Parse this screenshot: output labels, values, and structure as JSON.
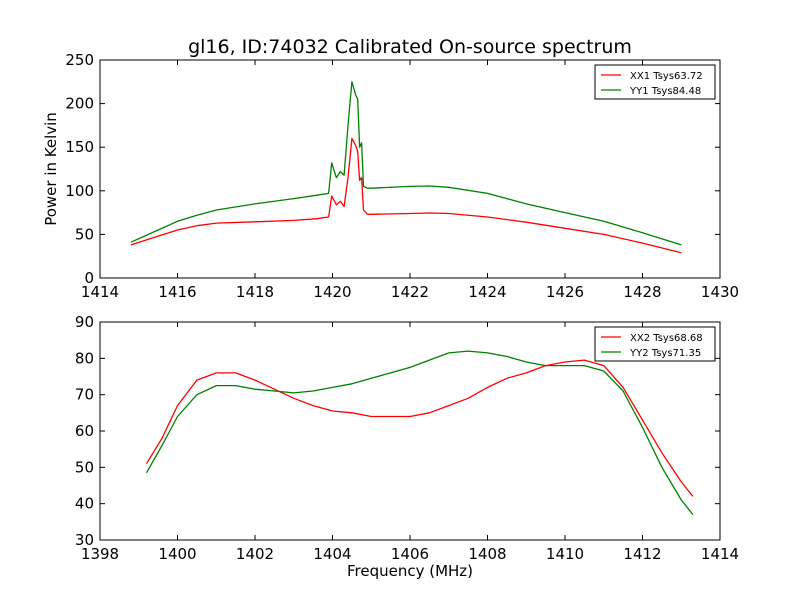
{
  "title": "gl16, ID:74032 Calibrated On-source spectrum",
  "xlabel": "Frequency (MHz)",
  "ylabel": "Power in Kelvin",
  "colors": {
    "xx": "#ff0000",
    "yy": "#008000",
    "axes": "#000000",
    "background": "#ffffff"
  },
  "chart_data": [
    {
      "type": "line",
      "xlim": [
        1414,
        1430
      ],
      "ylim": [
        0,
        250
      ],
      "xticks": [
        1414,
        1416,
        1418,
        1420,
        1422,
        1424,
        1426,
        1428,
        1430
      ],
      "yticks": [
        0,
        50,
        100,
        150,
        200,
        250
      ],
      "legend_position": "top-right",
      "grid": false,
      "series": [
        {
          "name": "XX1 Tsys63.72",
          "color": "#ff0000",
          "x": [
            1414.8,
            1415.5,
            1416.0,
            1416.5,
            1417.0,
            1418.0,
            1419.0,
            1419.6,
            1419.9,
            1419.98,
            1420.1,
            1420.2,
            1420.3,
            1420.4,
            1420.5,
            1420.6,
            1420.65,
            1420.7,
            1420.75,
            1420.8,
            1420.9,
            1421.0,
            1422.0,
            1422.5,
            1423.0,
            1424.0,
            1425.0,
            1426.0,
            1427.0,
            1428.0,
            1429.0
          ],
          "y": [
            38,
            48,
            55,
            60,
            63,
            64.5,
            66,
            68,
            70,
            94,
            84,
            88,
            82,
            115,
            160,
            152,
            145,
            112,
            115,
            78,
            73,
            73,
            74,
            74.5,
            74,
            70,
            64,
            57,
            50,
            40,
            29
          ]
        },
        {
          "name": "YY1 Tsys84.48",
          "color": "#008000",
          "x": [
            1414.8,
            1415.5,
            1416.0,
            1416.5,
            1417.0,
            1418.0,
            1419.0,
            1419.6,
            1419.9,
            1419.98,
            1420.1,
            1420.2,
            1420.3,
            1420.4,
            1420.5,
            1420.6,
            1420.65,
            1420.7,
            1420.75,
            1420.8,
            1420.9,
            1421.0,
            1422.0,
            1422.5,
            1423.0,
            1424.0,
            1425.0,
            1426.0,
            1427.0,
            1428.0,
            1429.0
          ],
          "y": [
            41,
            55,
            65,
            72,
            78,
            85,
            91,
            95,
            97,
            132,
            115,
            122,
            118,
            175,
            225,
            210,
            205,
            150,
            155,
            105,
            103,
            103,
            105,
            105.5,
            104,
            97,
            85,
            75,
            65,
            52,
            38
          ]
        }
      ]
    },
    {
      "type": "line",
      "xlim": [
        1398,
        1414
      ],
      "ylim": [
        30,
        90
      ],
      "xticks": [
        1398,
        1400,
        1402,
        1404,
        1406,
        1408,
        1410,
        1412,
        1414
      ],
      "yticks": [
        30,
        40,
        50,
        60,
        70,
        80,
        90
      ],
      "legend_position": "top-right",
      "grid": false,
      "series": [
        {
          "name": "XX2 Tsys68.68",
          "color": "#ff0000",
          "x": [
            1399.2,
            1399.6,
            1400.0,
            1400.5,
            1401.0,
            1401.5,
            1402.0,
            1402.5,
            1403.0,
            1403.5,
            1404.0,
            1404.5,
            1405.0,
            1405.5,
            1406.0,
            1406.5,
            1407.0,
            1407.5,
            1408.0,
            1408.5,
            1409.0,
            1409.5,
            1410.0,
            1410.5,
            1411.0,
            1411.5,
            1412.0,
            1412.5,
            1413.0,
            1413.3
          ],
          "y": [
            51,
            58,
            67,
            74,
            76,
            76,
            74,
            71.5,
            69,
            67,
            65.5,
            65,
            64,
            64,
            64,
            65,
            67,
            69,
            72,
            74.5,
            76,
            78,
            79,
            79.5,
            78,
            72,
            63,
            54,
            46,
            42
          ]
        },
        {
          "name": "YY2 Tsys71.35",
          "color": "#008000",
          "x": [
            1399.2,
            1399.6,
            1400.0,
            1400.5,
            1401.0,
            1401.5,
            1402.0,
            1402.5,
            1403.0,
            1403.5,
            1404.0,
            1404.5,
            1405.0,
            1405.5,
            1406.0,
            1406.5,
            1407.0,
            1407.5,
            1408.0,
            1408.5,
            1409.0,
            1409.5,
            1410.0,
            1410.5,
            1411.0,
            1411.5,
            1412.0,
            1412.5,
            1413.0,
            1413.3
          ],
          "y": [
            48.5,
            56,
            64,
            70,
            72.5,
            72.5,
            71.5,
            71,
            70.5,
            71,
            72,
            73,
            74.5,
            76,
            77.5,
            79.5,
            81.5,
            82,
            81.5,
            80.5,
            79,
            78,
            78,
            78,
            76.5,
            71,
            61,
            50,
            41,
            37
          ]
        }
      ]
    }
  ]
}
